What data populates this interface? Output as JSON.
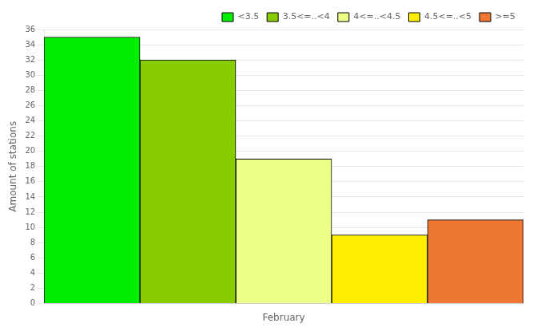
{
  "chart_data": {
    "type": "bar",
    "categories": [
      "February"
    ],
    "series": [
      {
        "name": "<3.5",
        "color": "#00ee00",
        "values": [
          35
        ]
      },
      {
        "name": "3.5<=..<4",
        "color": "#88cc00",
        "values": [
          32
        ]
      },
      {
        "name": "4<=..<4.5",
        "color": "#eeff88",
        "values": [
          19
        ]
      },
      {
        "name": "4.5<=..<5",
        "color": "#ffee00",
        "values": [
          9
        ]
      },
      {
        "name": ">=5",
        "color": "#ee7733",
        "values": [
          11
        ]
      }
    ],
    "ylabel": "Amount of stations",
    "ylim": [
      0,
      36
    ],
    "yticks": [
      0,
      2,
      4,
      6,
      8,
      10,
      12,
      14,
      16,
      18,
      20,
      22,
      24,
      26,
      28,
      30,
      32,
      34,
      36
    ],
    "grid": true,
    "legend": "upper right"
  }
}
